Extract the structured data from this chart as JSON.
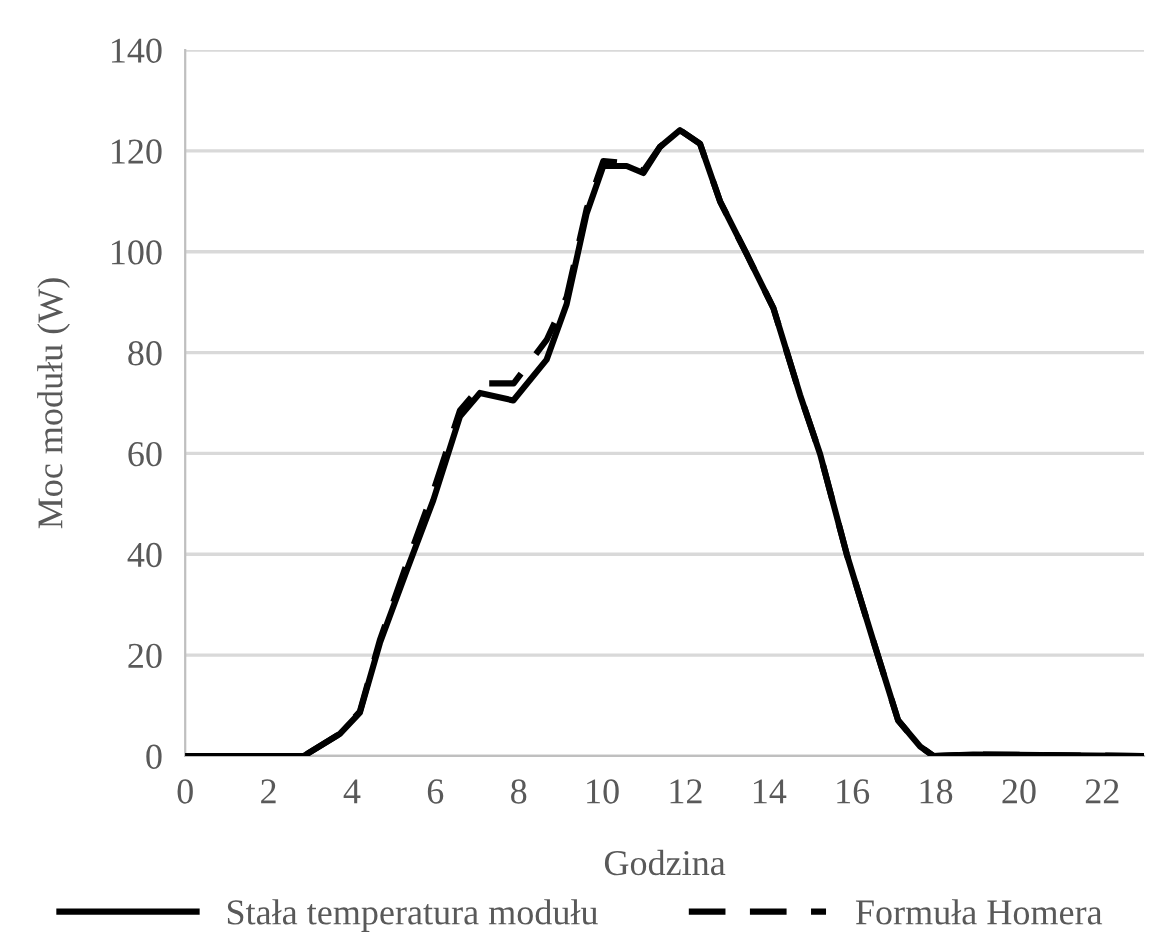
{
  "chart_data": {
    "type": "line",
    "xlabel": "Godzina",
    "ylabel": "Moc modułu (W)",
    "xlim": [
      0,
      23
    ],
    "xticks": [
      0,
      2,
      4,
      6,
      8,
      10,
      12,
      14,
      16,
      18,
      20,
      22
    ],
    "ylim": [
      0,
      140
    ],
    "yticks": [
      0,
      20,
      40,
      60,
      80,
      100,
      120,
      140
    ],
    "grid": "y",
    "legend": "bottom",
    "marker": "none",
    "series": [
      {
        "name": "Stała temperatura modułu",
        "color": "#000000",
        "line_style": "solid",
        "x": [
          0,
          1.95,
          2.84,
          3.71,
          4.19,
          4.67,
          5.31,
          5.95,
          6.59,
          7.07,
          7.87,
          8.67,
          9.15,
          9.63,
          10.03,
          10.59,
          10.99,
          11.39,
          11.87,
          12.35,
          12.83,
          13.47,
          14.11,
          14.75,
          15.23,
          15.87,
          16.5,
          17.1,
          17.63,
          17.95,
          18.9,
          23
        ],
        "values": [
          0,
          0,
          0,
          4.4,
          8.6,
          22.4,
          36.7,
          50.7,
          67.3,
          72,
          70.5,
          78.6,
          89.6,
          107.6,
          117,
          117,
          115.6,
          120.8,
          124.1,
          121.4,
          110,
          99.5,
          88.8,
          71.6,
          59.9,
          40,
          23,
          7.1,
          1.9,
          0,
          0.3,
          0
        ]
      },
      {
        "name": "Formuła Homera",
        "color": "#000000",
        "line_style": "dashed",
        "x": [
          0,
          1.95,
          2.84,
          3.71,
          4.19,
          4.67,
          5.31,
          5.95,
          6.59,
          7.15,
          7.88,
          8.67,
          9.15,
          9.63,
          10.03,
          10.59,
          10.99,
          11.39,
          11.87,
          12.35,
          12.83,
          13.47,
          14.11,
          14.75,
          15.23,
          15.87,
          16.5,
          17.1,
          17.63,
          17.95,
          18.9,
          23
        ],
        "values": [
          0,
          0,
          0,
          4.4,
          8.8,
          23,
          38,
          52.5,
          68.5,
          73.9,
          73.9,
          82.5,
          91,
          108.5,
          118,
          117.5,
          116,
          120.8,
          124.1,
          121.4,
          110,
          99.5,
          88.8,
          71.6,
          59.9,
          40,
          23,
          7.1,
          1.9,
          0,
          0.3,
          0
        ]
      }
    ]
  }
}
